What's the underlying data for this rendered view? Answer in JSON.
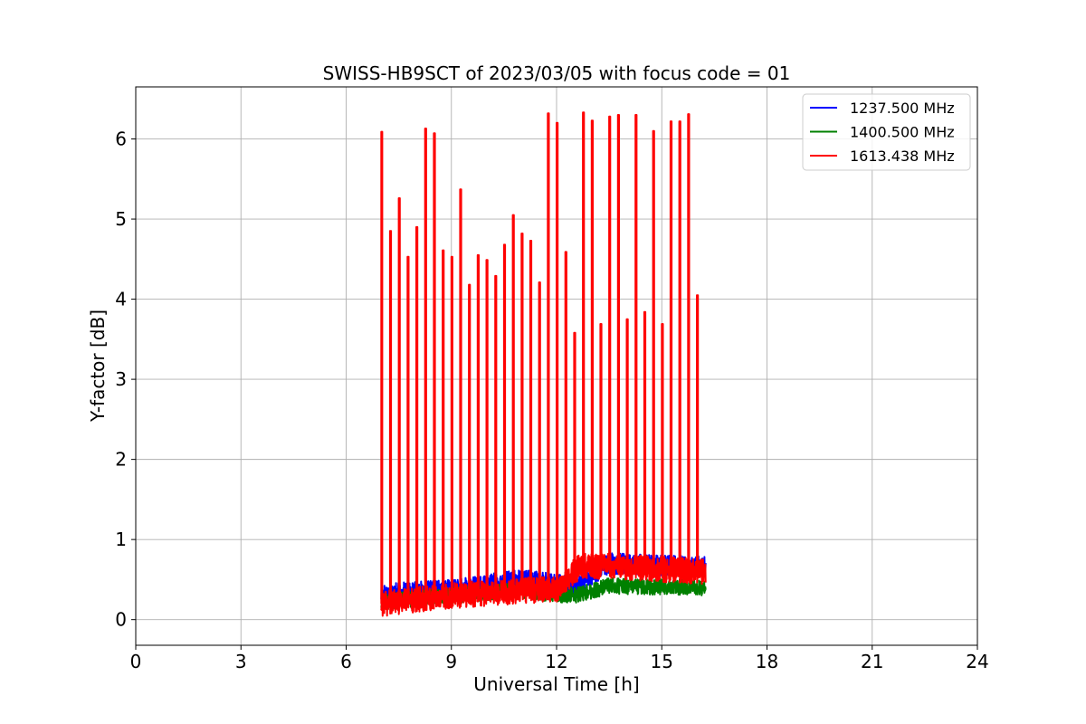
{
  "chart_data": {
    "type": "line",
    "title": "SWISS-HB9SCT of 2023/03/05 with focus code = 01",
    "xlabel": "Universal Time [h]",
    "ylabel": "Y-factor [dB]",
    "xlim": [
      0,
      24
    ],
    "ylim": [
      -0.32,
      6.65
    ],
    "xticks": [
      0,
      3,
      6,
      9,
      12,
      15,
      18,
      21,
      24
    ],
    "yticks": [
      0,
      1,
      2,
      3,
      4,
      5,
      6
    ],
    "grid": true,
    "legend_position": "top-right",
    "series": [
      {
        "name": "1237.500 MHz",
        "color": "#0000ff",
        "x_range": [
          7.0,
          16.25
        ],
        "baseline": [
          [
            7.0,
            0.32
          ],
          [
            9.0,
            0.37
          ],
          [
            11.0,
            0.5
          ],
          [
            12.5,
            0.42
          ],
          [
            13.5,
            0.7
          ],
          [
            16.25,
            0.66
          ]
        ],
        "noise_amplitude": 0.13,
        "spikes": []
      },
      {
        "name": "1400.500 MHz",
        "color": "#008000",
        "x_range": [
          7.0,
          16.25
        ],
        "baseline": [
          [
            7.0,
            0.22
          ],
          [
            9.0,
            0.3
          ],
          [
            11.0,
            0.36
          ],
          [
            12.5,
            0.3
          ],
          [
            13.5,
            0.42
          ],
          [
            16.25,
            0.4
          ]
        ],
        "noise_amplitude": 0.1,
        "spikes": []
      },
      {
        "name": "1613.438 MHz",
        "color": "#ff0000",
        "x_range": [
          7.0,
          16.25
        ],
        "baseline": [
          [
            7.0,
            0.2
          ],
          [
            9.0,
            0.3
          ],
          [
            11.0,
            0.36
          ],
          [
            12.0,
            0.38
          ],
          [
            12.7,
            0.68
          ],
          [
            16.25,
            0.6
          ]
        ],
        "noise_amplitude": 0.16,
        "spikes": [
          [
            7.0,
            6.09
          ],
          [
            7.25,
            4.85
          ],
          [
            7.5,
            5.26
          ],
          [
            7.75,
            4.53
          ],
          [
            8.0,
            4.9
          ],
          [
            8.25,
            6.13
          ],
          [
            8.5,
            6.07
          ],
          [
            8.75,
            4.61
          ],
          [
            9.0,
            4.53
          ],
          [
            9.25,
            5.37
          ],
          [
            9.5,
            4.18
          ],
          [
            9.75,
            4.55
          ],
          [
            10.0,
            4.49
          ],
          [
            10.25,
            4.29
          ],
          [
            10.5,
            4.68
          ],
          [
            10.75,
            5.05
          ],
          [
            11.0,
            4.82
          ],
          [
            11.25,
            4.73
          ],
          [
            11.5,
            4.21
          ],
          [
            11.75,
            6.32
          ],
          [
            12.0,
            6.2
          ],
          [
            12.25,
            4.59
          ],
          [
            12.5,
            3.58
          ],
          [
            12.75,
            6.33
          ],
          [
            13.0,
            6.23
          ],
          [
            13.25,
            3.69
          ],
          [
            13.5,
            6.28
          ],
          [
            13.75,
            6.3
          ],
          [
            14.0,
            3.75
          ],
          [
            14.25,
            6.3
          ],
          [
            14.5,
            3.84
          ],
          [
            14.75,
            6.1
          ],
          [
            15.0,
            3.69
          ],
          [
            15.25,
            6.22
          ],
          [
            15.5,
            6.22
          ],
          [
            15.75,
            6.31
          ],
          [
            16.0,
            4.05
          ]
        ]
      }
    ]
  }
}
